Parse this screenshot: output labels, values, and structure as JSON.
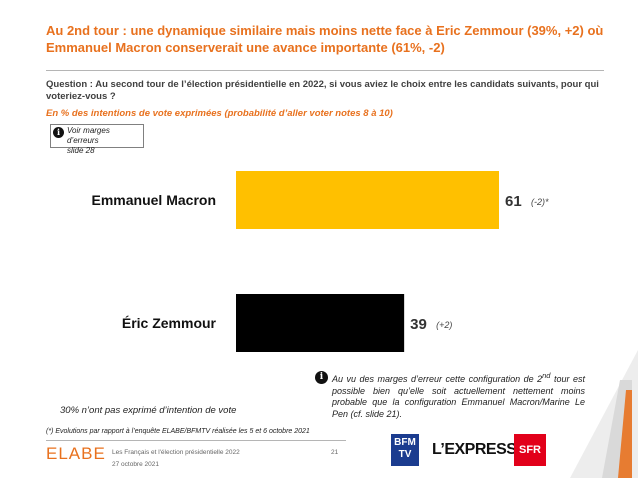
{
  "title": "Au 2nd tour : une dynamique similaire mais moins nette face à Eric Zemmour (39%, +2) où Emmanuel Macron conserverait une avance importante (61%, -2)",
  "question": "Question : Au second tour de l’élection présidentielle en 2022, si vous aviez le choix entre les candidats suivants, pour qui voteriez-vous ?",
  "base": "En % des intentions de vote exprimées (probabilité d’aller voter notes 8 à 10)",
  "margins_note": {
    "icon": "info-icon",
    "line1": "Voir marges d’erreurs",
    "line2": "slide 28"
  },
  "chart_data": {
    "type": "bar",
    "orientation": "horizontal",
    "categories": [
      "Emmanuel Macron",
      "Éric Zemmour"
    ],
    "values": [
      61,
      39
    ],
    "value_labels": [
      "61",
      "39"
    ],
    "evolutions": [
      "(-2)*",
      "(+2)"
    ],
    "colors": [
      "#FFC000",
      "#000000"
    ],
    "xlim": [
      0,
      61
    ],
    "grid": false
  },
  "no_vote": "30% n’ont pas exprimé d’intention de vote",
  "footnote": "(*) Evolutions par rapport à l’enquête ELABE/BFMTV réalisée les 5 et 6 octobre 2021",
  "note": {
    "icon": "info-icon",
    "before_sup": "Au vu des marges d’erreur cette configuration de 2",
    "sup": "nd",
    "after_sup": " tour est possible bien qu’elle soit actuellement nettement moins probable que la configuration Emmanuel Macron/Marine Le Pen (cf. slide 21)."
  },
  "footer": {
    "logo": "ELABE",
    "study": "Les Français et l'élection présidentielle 2022",
    "date": "27 octobre 2021",
    "page": "21",
    "partners": {
      "bfm_line1": "BFM",
      "bfm_line2": "TV",
      "express": "L’EXPRESS",
      "sfr": "SFR"
    }
  },
  "colors": {
    "accent": "#E8711E",
    "bfm": "#1B3C8F",
    "sfr": "#E2001A"
  }
}
